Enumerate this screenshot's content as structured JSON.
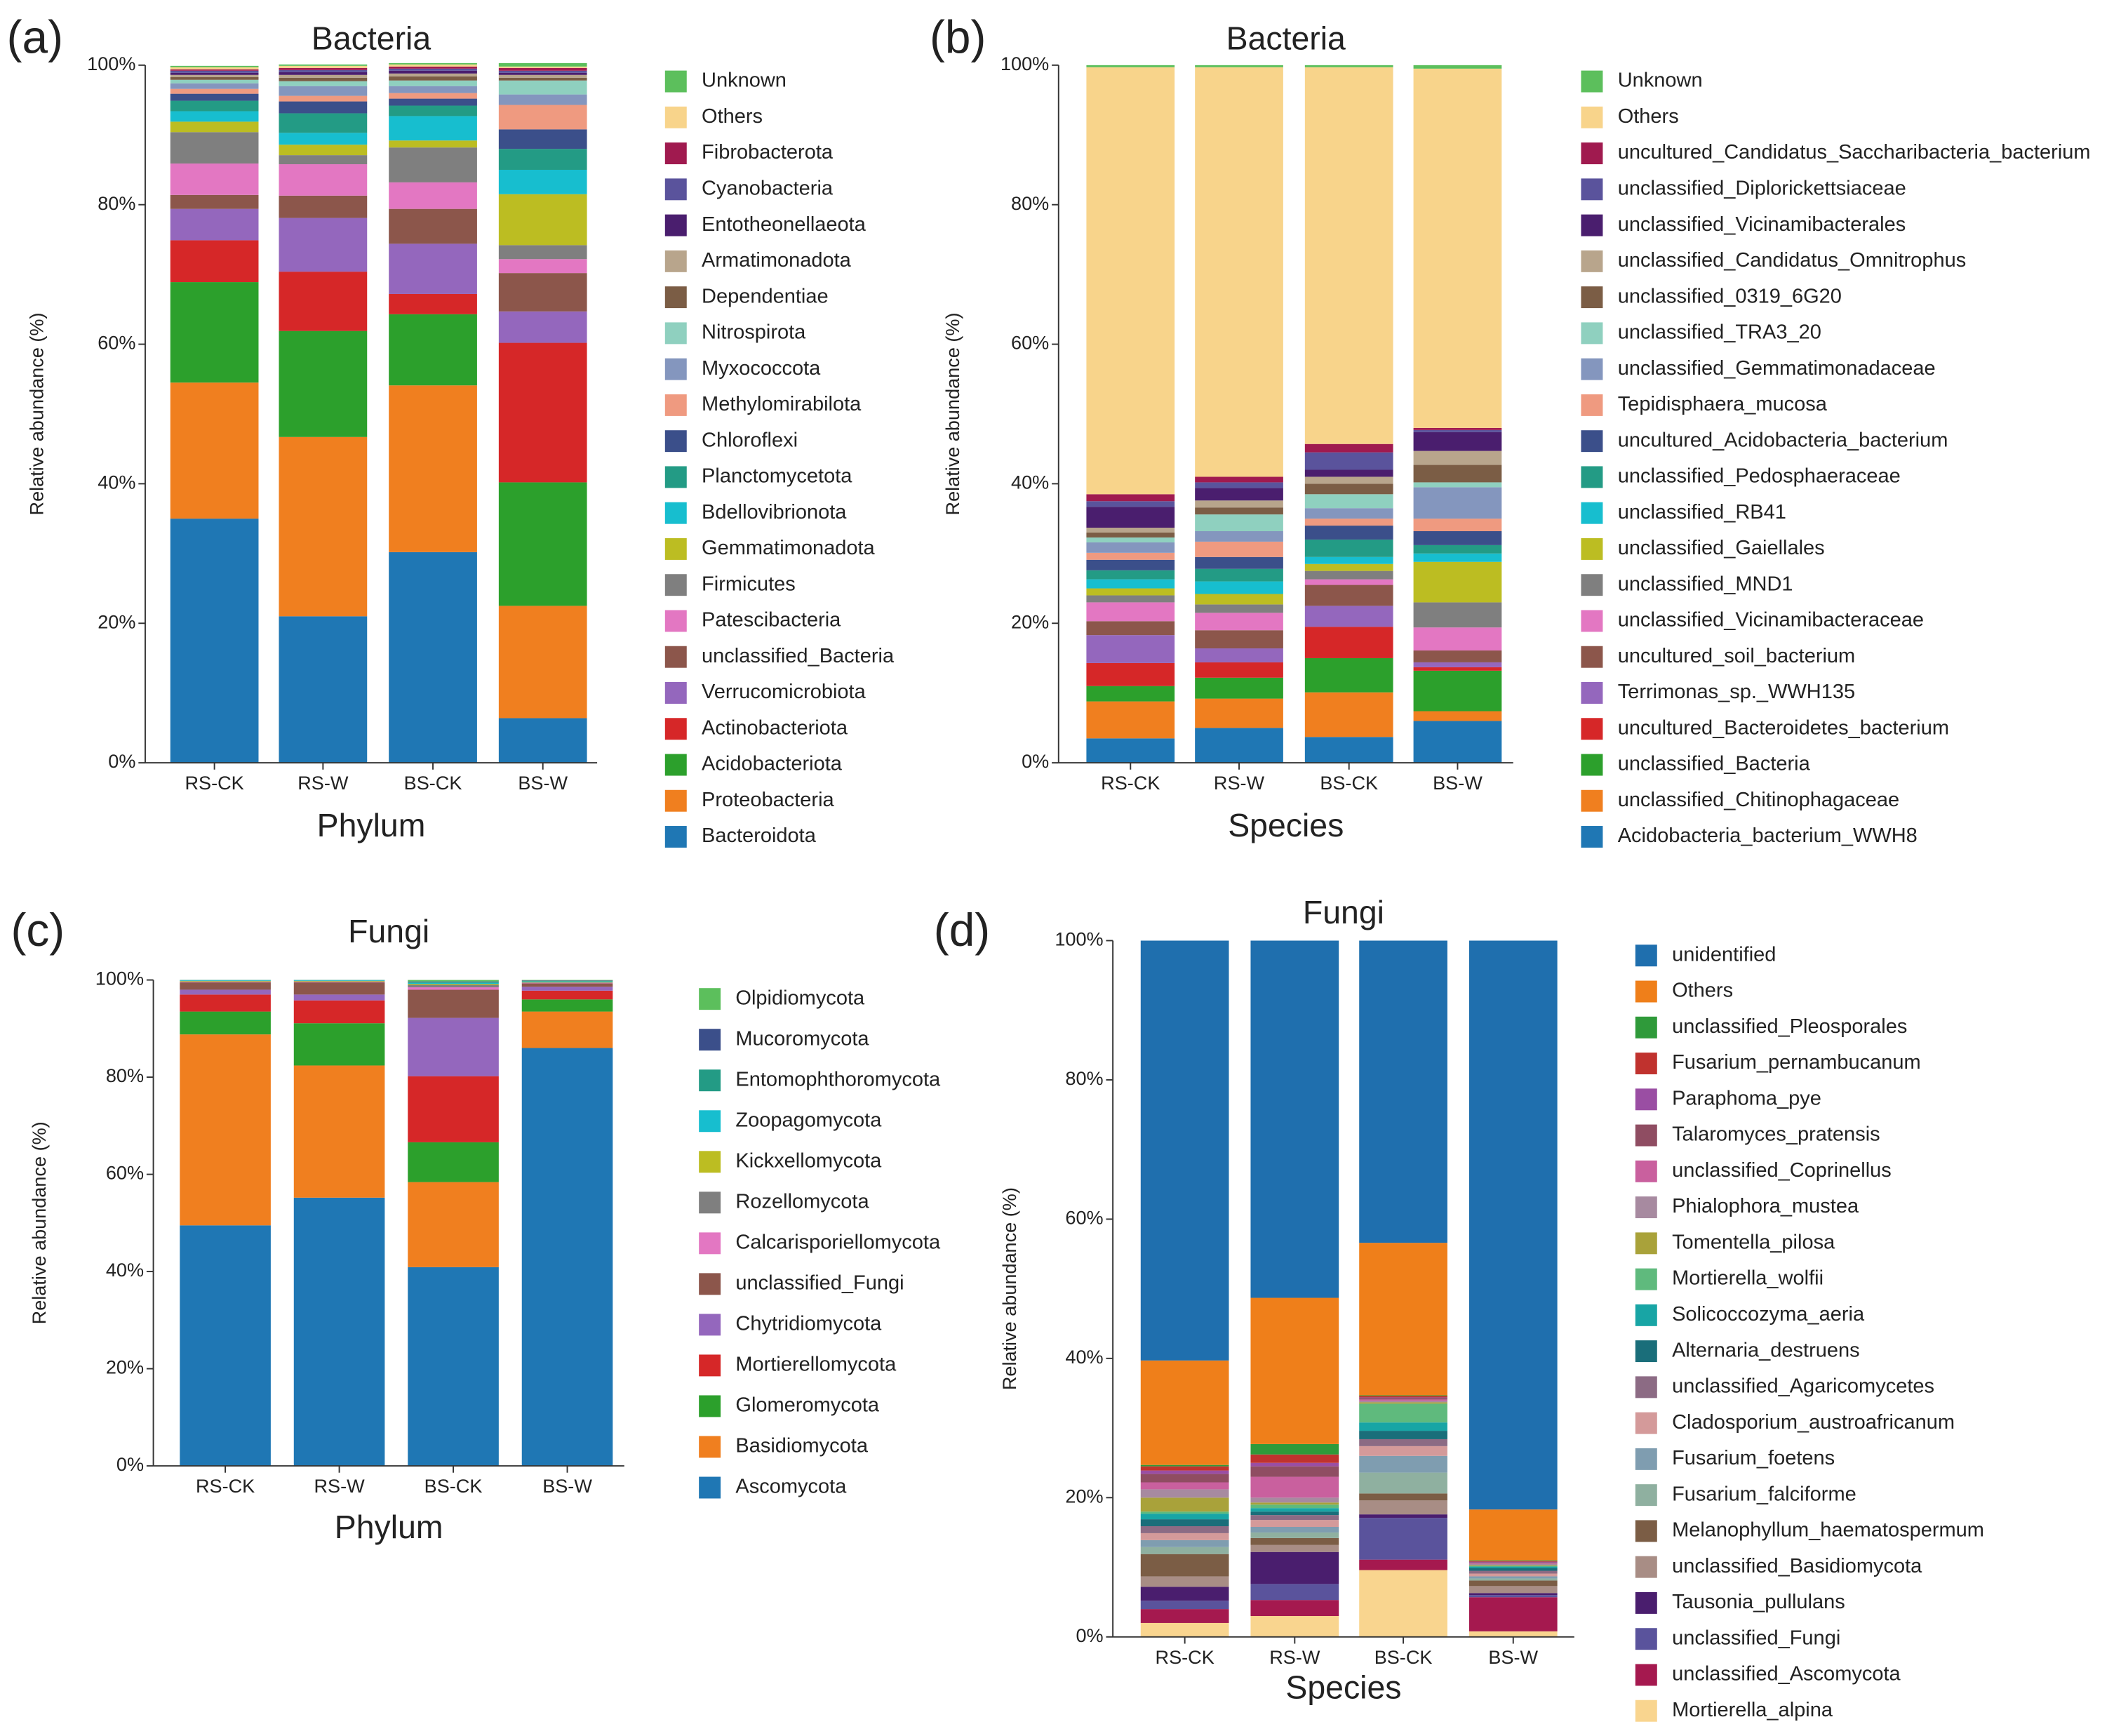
{
  "chart_data": [
    {
      "type": "bar",
      "stacked": true,
      "panel_label": "(a)",
      "title": "Bacteria",
      "x_label": "Phylum",
      "y_label": "Relative abundance (%)",
      "categories": [
        "RS-CK",
        "RS-W",
        "BS-CK",
        "BS-W"
      ],
      "ylim": [
        0,
        100
      ],
      "yticks": [
        {
          "value": 0,
          "label": "0%"
        },
        {
          "value": 20,
          "label": "20%"
        },
        {
          "value": 40,
          "label": "40%"
        },
        {
          "value": 60,
          "label": "60%"
        },
        {
          "value": 80,
          "label": "80%"
        },
        {
          "value": 100,
          "label": "100%"
        }
      ],
      "series": [
        {
          "name": "Bacteroidota",
          "color": "#1f77b4",
          "values": [
            35,
            21,
            30.2,
            6.4
          ]
        },
        {
          "name": "Proteobacteria",
          "color": "#f07f1f",
          "values": [
            19.5,
            25.7,
            23.9,
            16.1
          ]
        },
        {
          "name": "Acidobacteriota",
          "color": "#2ca02c",
          "values": [
            14.4,
            15.2,
            10.2,
            17.7
          ]
        },
        {
          "name": "Actinobacteriota",
          "color": "#d62728",
          "values": [
            6,
            8.5,
            2.9,
            20
          ]
        },
        {
          "name": "Verrucomicrobiota",
          "color": "#9467bd",
          "values": [
            4.5,
            7.7,
            7.2,
            4.5
          ]
        },
        {
          "name": "unclassified_Bacteria",
          "color": "#8c564b",
          "values": [
            2,
            3.2,
            5,
            5.5
          ]
        },
        {
          "name": "Patescibacteria",
          "color": "#e377c2",
          "values": [
            4.5,
            4.5,
            3.8,
            2
          ]
        },
        {
          "name": "Firmicutes",
          "color": "#7f7f7f",
          "values": [
            4.5,
            1.3,
            5,
            2
          ]
        },
        {
          "name": "Gemmatimonadota",
          "color": "#bcbd22",
          "values": [
            1.5,
            1.5,
            1,
            7.3
          ]
        },
        {
          "name": "Bdellovibrionota",
          "color": "#17becf",
          "values": [
            1.5,
            1.7,
            3.5,
            3.5
          ]
        },
        {
          "name": "Planctomycetota",
          "color": "#239b85",
          "values": [
            1.5,
            2.8,
            1.5,
            3
          ]
        },
        {
          "name": "Chloroflexi",
          "color": "#3b4f8a",
          "values": [
            1,
            1.7,
            1,
            2.8
          ]
        },
        {
          "name": "Methylomirabilota",
          "color": "#ef9a80",
          "values": [
            0.7,
            0.8,
            0.8,
            3.5
          ]
        },
        {
          "name": "Myxococcota",
          "color": "#8496be",
          "values": [
            0.8,
            1.4,
            1,
            1.5
          ]
        },
        {
          "name": "Nitrospirota",
          "color": "#8fd0bf",
          "values": [
            0.5,
            0.7,
            0.8,
            2
          ]
        },
        {
          "name": "Dependentiae",
          "color": "#7b5d45",
          "values": [
            0.4,
            0.5,
            0.6,
            0.4
          ]
        },
        {
          "name": "Armatimonadota",
          "color": "#b8a58c",
          "values": [
            0.3,
            0.4,
            0.4,
            0.4
          ]
        },
        {
          "name": "Entotheonellaeota",
          "color": "#4a1e6e",
          "values": [
            0.3,
            0.4,
            0.4,
            0.3
          ]
        },
        {
          "name": "Cyanobacteria",
          "color": "#5a539c",
          "values": [
            0.3,
            0.3,
            0.3,
            0.3
          ]
        },
        {
          "name": "Fibrobacterota",
          "color": "#a01a4f",
          "values": [
            0.2,
            0.3,
            0.3,
            0.4
          ]
        },
        {
          "name": "Others",
          "color": "#f8d48b",
          "values": [
            0.3,
            0.3,
            0.3,
            0.2
          ]
        },
        {
          "name": "Unknown",
          "color": "#5cbf5c",
          "values": [
            0.2,
            0.2,
            0.2,
            0.5
          ]
        }
      ]
    },
    {
      "type": "bar",
      "stacked": true,
      "panel_label": "(b)",
      "title": "Bacteria",
      "x_label": "Species",
      "y_label": "Relative abundance (%)",
      "categories": [
        "RS-CK",
        "RS-W",
        "BS-CK",
        "BS-W"
      ],
      "ylim": [
        0,
        100
      ],
      "yticks": [
        {
          "value": 0,
          "label": "0%"
        },
        {
          "value": 20,
          "label": "20%"
        },
        {
          "value": 40,
          "label": "40%"
        },
        {
          "value": 60,
          "label": "60%"
        },
        {
          "value": 80,
          "label": "80%"
        },
        {
          "value": 100,
          "label": "100%"
        }
      ],
      "series": [
        {
          "name": "Acidobacteria_bacterium_WWH8",
          "color": "#1f77b4",
          "values": [
            3.5,
            5,
            3.7,
            6
          ]
        },
        {
          "name": "unclassified_Chitinophagaceae",
          "color": "#f07f1f",
          "values": [
            5.3,
            4.2,
            6.4,
            1.4
          ]
        },
        {
          "name": "unclassified_Bacteria",
          "color": "#2ca02c",
          "values": [
            2.2,
            3,
            4.9,
            5.8
          ]
        },
        {
          "name": "uncultured_Bacteroidetes_bacterium",
          "color": "#d62728",
          "values": [
            3.3,
            2.2,
            4.5,
            0.5
          ]
        },
        {
          "name": "Terrimonas_sp._WWH135",
          "color": "#9467bd",
          "values": [
            4,
            2,
            3,
            0.7
          ]
        },
        {
          "name": "uncultured_soil_bacterium",
          "color": "#8c564b",
          "values": [
            2,
            2.6,
            3,
            1.7
          ]
        },
        {
          "name": "unclassified_Vicinamibacteraceae",
          "color": "#e377c2",
          "values": [
            2.7,
            2.5,
            0.8,
            3.3
          ]
        },
        {
          "name": "unclassified_MND1",
          "color": "#7f7f7f",
          "values": [
            1,
            1.2,
            1.2,
            3.6
          ]
        },
        {
          "name": "unclassified_Gaiellales",
          "color": "#bcbd22",
          "values": [
            1,
            1.5,
            1,
            5.8
          ]
        },
        {
          "name": "unclassified_RB41",
          "color": "#17becf",
          "values": [
            1.3,
            1.8,
            1,
            1.2
          ]
        },
        {
          "name": "unclassified_Pedosphaeraceae",
          "color": "#239b85",
          "values": [
            1.3,
            1.8,
            2.5,
            1.2
          ]
        },
        {
          "name": "uncultured_Acidobacteria_bacterium",
          "color": "#3b4f8a",
          "values": [
            1.5,
            1.7,
            2,
            2
          ]
        },
        {
          "name": "Tepidisphaera_mucosa",
          "color": "#ef9a80",
          "values": [
            1,
            2.2,
            1,
            1.8
          ]
        },
        {
          "name": "unclassified_Gemmatimonadaceae",
          "color": "#8496be",
          "values": [
            1.5,
            1.5,
            1.5,
            4.5
          ]
        },
        {
          "name": "unclassified_TRA3_20",
          "color": "#8fd0bf",
          "values": [
            0.7,
            2.4,
            2,
            0.7
          ]
        },
        {
          "name": "unclassified_0319_6G20",
          "color": "#7b5d45",
          "values": [
            0.7,
            1,
            1.5,
            2.5
          ]
        },
        {
          "name": "unclassified_Candidatus_Omnitrophus",
          "color": "#b8a58c",
          "values": [
            0.7,
            1,
            1,
            2
          ]
        },
        {
          "name": "unclassified_Vicinamibacterales",
          "color": "#4a1e6e",
          "values": [
            3,
            1.8,
            1,
            2.7
          ]
        },
        {
          "name": "unclassified_Diplorickettsiaceae",
          "color": "#5a539c",
          "values": [
            0.8,
            0.8,
            2.5,
            0.3
          ]
        },
        {
          "name": "uncultured_Candidatus_Saccharibacteria_bacterium",
          "color": "#a01a4f",
          "values": [
            1,
            0.8,
            1.2,
            0.3
          ]
        },
        {
          "name": "Others",
          "color": "#f8d48b",
          "values": [
            61.2,
            58.7,
            54,
            51.5
          ]
        },
        {
          "name": "Unknown",
          "color": "#5cbf5c",
          "values": [
            0.3,
            0.3,
            0.3,
            0.5
          ]
        }
      ]
    },
    {
      "type": "bar",
      "stacked": true,
      "panel_label": "(c)",
      "title": "Fungi",
      "x_label": "Phylum",
      "y_label": "Relative abundance (%)",
      "categories": [
        "RS-CK",
        "RS-W",
        "BS-CK",
        "BS-W"
      ],
      "ylim": [
        0,
        100
      ],
      "yticks": [
        {
          "value": 0,
          "label": "0%"
        },
        {
          "value": 20,
          "label": "20%"
        },
        {
          "value": 40,
          "label": "40%"
        },
        {
          "value": 60,
          "label": "60%"
        },
        {
          "value": 80,
          "label": "80%"
        },
        {
          "value": 100,
          "label": "100%"
        }
      ],
      "series": [
        {
          "name": "Ascomycota",
          "color": "#1f77b4",
          "values": [
            49.5,
            55.2,
            40.9,
            86
          ]
        },
        {
          "name": "Basidiomycota",
          "color": "#f07f1f",
          "values": [
            39.3,
            27.2,
            17.5,
            7.5
          ]
        },
        {
          "name": "Glomeromycota",
          "color": "#2ca02c",
          "values": [
            4.7,
            8.7,
            8.2,
            2.5
          ]
        },
        {
          "name": "Mortierellomycota",
          "color": "#d62728",
          "values": [
            3.5,
            4.7,
            13.6,
            1.8
          ]
        },
        {
          "name": "Chytridiomycota",
          "color": "#9467bd",
          "values": [
            1,
            1.2,
            12,
            0.8
          ]
        },
        {
          "name": "unclassified_Fungi",
          "color": "#8c564b",
          "values": [
            1.5,
            2.5,
            5.8,
            0.7
          ]
        },
        {
          "name": "Calcarisporiellomycota",
          "color": "#e377c2",
          "values": [
            0.1,
            0.1,
            0.5,
            0.1
          ]
        },
        {
          "name": "Rozellomycota",
          "color": "#7f7f7f",
          "values": [
            0.1,
            0.1,
            0.5,
            0.1
          ]
        },
        {
          "name": "Kickxellomycota",
          "color": "#bcbd22",
          "values": [
            0.1,
            0.1,
            0.2,
            0.1
          ]
        },
        {
          "name": "Zoopagomycota",
          "color": "#17becf",
          "values": [
            0.1,
            0.1,
            0.2,
            0.1
          ]
        },
        {
          "name": "Entomophthoromycota",
          "color": "#239b85",
          "values": [
            0.1,
            0.1,
            0.2,
            0.1
          ]
        },
        {
          "name": "Mucoromycota",
          "color": "#3b4f8a",
          "values": [
            0,
            0,
            0.1,
            0.1
          ]
        },
        {
          "name": "Olpidiomycota",
          "color": "#5cbf5c",
          "values": [
            0,
            0,
            0.3,
            0.1
          ]
        }
      ]
    },
    {
      "type": "bar",
      "stacked": true,
      "panel_label": "(d)",
      "title": "Fungi",
      "x_label": "Species",
      "y_label": "Relative abundance (%)",
      "categories": [
        "RS-CK",
        "RS-W",
        "BS-CK",
        "BS-W"
      ],
      "ylim": [
        0,
        100
      ],
      "yticks": [
        {
          "value": 0,
          "label": "0%"
        },
        {
          "value": 20,
          "label": "20%"
        },
        {
          "value": 40,
          "label": "40%"
        },
        {
          "value": 60,
          "label": "60%"
        },
        {
          "value": 80,
          "label": "80%"
        },
        {
          "value": 100,
          "label": "100%"
        }
      ],
      "series": [
        {
          "name": "Mortierella_alpina",
          "color": "#f9d58f",
          "values": [
            2,
            3,
            9.6,
            0.8
          ]
        },
        {
          "name": "unclassified_Ascomycota",
          "color": "#a5194f",
          "values": [
            2,
            2.3,
            1.5,
            4.9
          ]
        },
        {
          "name": "unclassified_Fungi",
          "color": "#5a539c",
          "values": [
            1.2,
            2.3,
            6,
            0.3
          ]
        },
        {
          "name": "Tausonia_pullulans",
          "color": "#4a1e6e",
          "values": [
            2,
            4.6,
            0.5,
            0.3
          ]
        },
        {
          "name": "unclassified_Basidiomycota",
          "color": "#a88d85",
          "values": [
            1.5,
            1,
            2,
            1
          ]
        },
        {
          "name": "Melanophyllum_haematospermum",
          "color": "#7b5d45",
          "values": [
            3.2,
            1,
            1,
            0.8
          ]
        },
        {
          "name": "Fusarium_falciforme",
          "color": "#8fb0a0",
          "values": [
            1,
            0.8,
            3,
            0.3
          ]
        },
        {
          "name": "Fusarium_foetens",
          "color": "#7f9db0",
          "values": [
            1,
            0.8,
            2.4,
            0.3
          ]
        },
        {
          "name": "Cladosporium_austroafricanum",
          "color": "#d49a9a",
          "values": [
            1,
            1,
            1.4,
            0.4
          ]
        },
        {
          "name": "unclassified_Agaricomycetes",
          "color": "#8c6b84",
          "values": [
            1,
            0.7,
            1,
            0.4
          ]
        },
        {
          "name": "Alternaria_destruens",
          "color": "#1a6e7a",
          "values": [
            1,
            0.5,
            1.2,
            0.4
          ]
        },
        {
          "name": "Solicoccozyma_aeria",
          "color": "#18a5a5",
          "values": [
            0.8,
            0.5,
            1.2,
            0.2
          ]
        },
        {
          "name": "Mortierella_wolfii",
          "color": "#5fba7d",
          "values": [
            0.3,
            0.5,
            2.7,
            0.1
          ]
        },
        {
          "name": "Tomentella_pilosa",
          "color": "#a9a23a",
          "values": [
            2,
            0.3,
            0.2,
            0.1
          ]
        },
        {
          "name": "Phialophora_mustea",
          "color": "#a78aa0",
          "values": [
            1.2,
            0.7,
            0.2,
            0.2
          ]
        },
        {
          "name": "unclassified_Coprinellus",
          "color": "#c9609e",
          "values": [
            1,
            3,
            0.2,
            0.1
          ]
        },
        {
          "name": "Talaromyces_pratensis",
          "color": "#8f4d62",
          "values": [
            1.2,
            1.5,
            0.2,
            0.1
          ]
        },
        {
          "name": "Paraphoma_pye",
          "color": "#9a4ea3",
          "values": [
            0.5,
            0.5,
            0.1,
            0.1
          ]
        },
        {
          "name": "Fusarium_pernambucanum",
          "color": "#c0322e",
          "values": [
            0.6,
            1.2,
            0.2,
            0.1
          ]
        },
        {
          "name": "unclassified_Pleosporales",
          "color": "#2f9a3a",
          "values": [
            0.2,
            1.5,
            0.1,
            0.1
          ]
        },
        {
          "name": "Others",
          "color": "#ef7f1a",
          "values": [
            15,
            21,
            21.9,
            7.3
          ]
        },
        {
          "name": "unidentified",
          "color": "#1f6fae",
          "values": [
            60.3,
            51.3,
            43.4,
            81.7
          ]
        }
      ]
    }
  ]
}
